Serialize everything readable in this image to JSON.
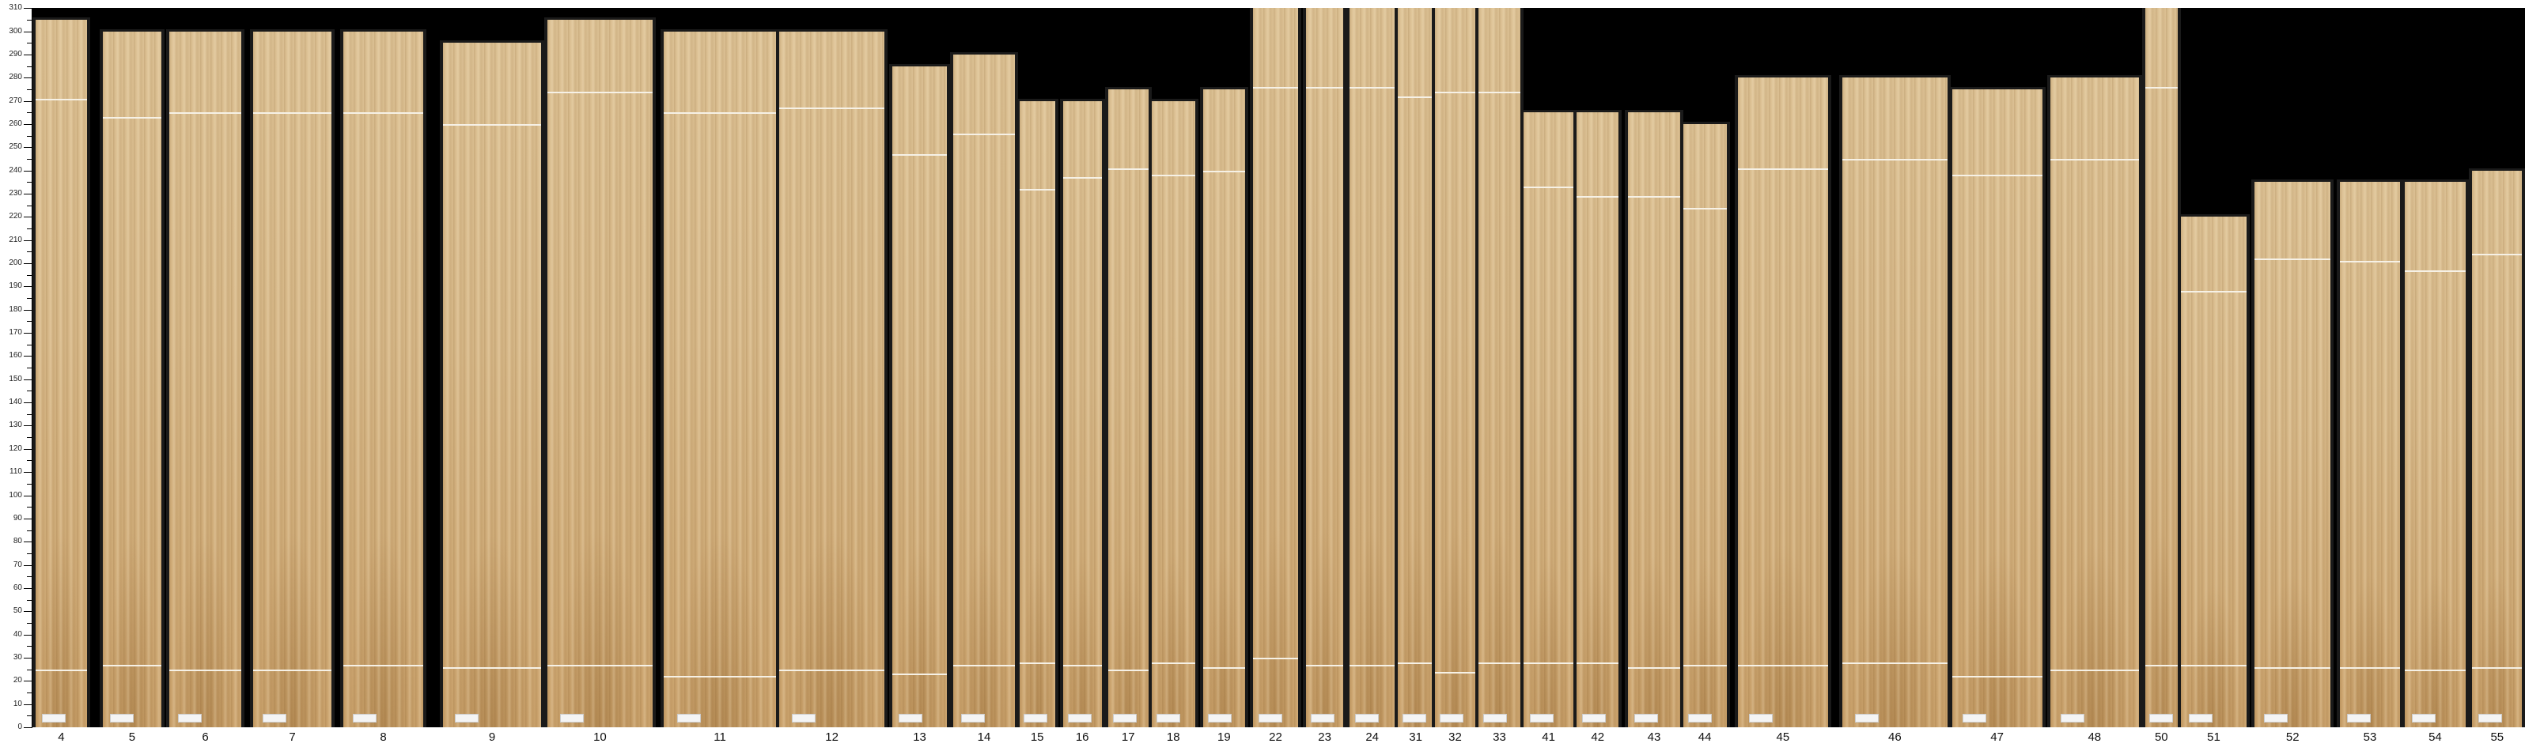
{
  "axis": {
    "unit_ticks": [
      0,
      10,
      20,
      30,
      40,
      50,
      60,
      70,
      80,
      90,
      100,
      110,
      120,
      130,
      140,
      150,
      160,
      170,
      180,
      190,
      200,
      210,
      220,
      230,
      240,
      250,
      260,
      270,
      280,
      290,
      300,
      310
    ],
    "min": 0,
    "max": 310
  },
  "colors": {
    "background": "#000000",
    "gap": "#1a1a1a",
    "wood": "#d6b787",
    "mark": "#f6f1e6"
  },
  "sheets": [
    {
      "label": "4",
      "length": 305,
      "marks": [
        271,
        25
      ]
    },
    {
      "label": "5",
      "length": 300,
      "marks": [
        263,
        27
      ]
    },
    {
      "label": "6",
      "length": 300,
      "marks": [
        265,
        25
      ]
    },
    {
      "label": "7",
      "length": 300,
      "marks": [
        265,
        25
      ]
    },
    {
      "label": "8",
      "length": 300,
      "marks": [
        265,
        27
      ]
    },
    {
      "label": "9",
      "length": 295,
      "marks": [
        260,
        26
      ]
    },
    {
      "label": "10",
      "length": 305,
      "marks": [
        274,
        27
      ]
    },
    {
      "label": "11",
      "length": 300,
      "marks": [
        265,
        22
      ]
    },
    {
      "label": "12",
      "length": 300,
      "marks": [
        267,
        25
      ]
    },
    {
      "label": "13",
      "length": 285,
      "marks": [
        247,
        23
      ]
    },
    {
      "label": "14",
      "length": 290,
      "marks": [
        256,
        27
      ]
    },
    {
      "label": "15",
      "length": 270,
      "marks": [
        232,
        28
      ]
    },
    {
      "label": "16",
      "length": 270,
      "marks": [
        237,
        27
      ]
    },
    {
      "label": "17",
      "length": 275,
      "marks": [
        241,
        25
      ]
    },
    {
      "label": "18",
      "length": 270,
      "marks": [
        238,
        28
      ]
    },
    {
      "label": "19",
      "length": 275,
      "marks": [
        240,
        26
      ]
    },
    {
      "label": "22",
      "length": 310,
      "marks": [
        276,
        30
      ]
    },
    {
      "label": "23",
      "length": 310,
      "marks": [
        276,
        27
      ]
    },
    {
      "label": "24",
      "length": 310,
      "marks": [
        276,
        27
      ]
    },
    {
      "label": "31",
      "length": 310,
      "marks": [
        272,
        28
      ]
    },
    {
      "label": "32",
      "length": 310,
      "marks": [
        274,
        24
      ]
    },
    {
      "label": "33",
      "length": 310,
      "marks": [
        274,
        28
      ]
    },
    {
      "label": "41",
      "length": 265,
      "marks": [
        233,
        28
      ]
    },
    {
      "label": "42",
      "length": 265,
      "marks": [
        229,
        28
      ]
    },
    {
      "label": "43",
      "length": 265,
      "marks": [
        229,
        26
      ]
    },
    {
      "label": "44",
      "length": 260,
      "marks": [
        224,
        27
      ]
    },
    {
      "label": "45",
      "length": 280,
      "marks": [
        241,
        27
      ]
    },
    {
      "label": "46",
      "length": 280,
      "marks": [
        245,
        28
      ]
    },
    {
      "label": "47",
      "length": 275,
      "marks": [
        238,
        22
      ]
    },
    {
      "label": "48",
      "length": 280,
      "marks": [
        245,
        25
      ]
    },
    {
      "label": "50",
      "length": 310,
      "marks": [
        276,
        27
      ]
    },
    {
      "label": "51",
      "length": 220,
      "marks": [
        188,
        27
      ]
    },
    {
      "label": "52",
      "length": 235,
      "marks": [
        202,
        26
      ]
    },
    {
      "label": "53",
      "length": 235,
      "marks": [
        201,
        26
      ]
    },
    {
      "label": "54",
      "length": 235,
      "marks": [
        197,
        25
      ]
    },
    {
      "label": "55",
      "length": 240,
      "marks": [
        204,
        26
      ]
    }
  ]
}
